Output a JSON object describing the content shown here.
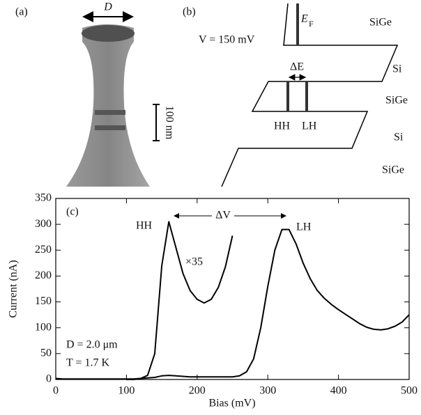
{
  "panel_a": {
    "label": "(a)",
    "width_label": "D",
    "scale_label": "100 nm"
  },
  "panel_b": {
    "label": "(b)",
    "bias": "V = 150 mV",
    "fermi": "E",
    "fermi_sub": "F",
    "layers": [
      "SiGe",
      "Si",
      "SiGe",
      "Si",
      "SiGe"
    ],
    "splitting": "ΔE",
    "hh": "HH",
    "lh": "LH"
  },
  "chart_data": {
    "type": "line",
    "label": "(c)",
    "x_label": "Bias (mV)",
    "y_label": "Current (nA)",
    "x": [
      0,
      10,
      20,
      30,
      40,
      50,
      60,
      70,
      80,
      90,
      100,
      110,
      120,
      130,
      140,
      150,
      160,
      170,
      180,
      190,
      200,
      210,
      220,
      230,
      240,
      250,
      260,
      270,
      280,
      290,
      300,
      310,
      320,
      330,
      340,
      350,
      360,
      370,
      380,
      390,
      400,
      410,
      420,
      430,
      440,
      450,
      460,
      470,
      480,
      490,
      500
    ],
    "series": [
      {
        "color": "#000000",
        "values": [
          2,
          1,
          1,
          1,
          1,
          1,
          1,
          1,
          1,
          1,
          1,
          1,
          2,
          3,
          4,
          7,
          8,
          7,
          6,
          5,
          5,
          5,
          5,
          5,
          5,
          5,
          7,
          15,
          40,
          100,
          180,
          250,
          290,
          290,
          262,
          225,
          195,
          172,
          157,
          145,
          135,
          126,
          117,
          108,
          101,
          97,
          96,
          98,
          103,
          111,
          125
        ]
      },
      {
        "color": "#000000",
        "values": [
          null,
          null,
          null,
          null,
          null,
          null,
          null,
          null,
          null,
          null,
          0,
          0,
          2,
          8,
          50,
          220,
          305,
          255,
          205,
          172,
          155,
          148,
          155,
          178,
          218,
          278,
          null,
          null,
          null,
          null,
          null,
          null,
          null,
          null,
          null,
          null,
          null,
          null,
          null,
          null,
          null,
          null,
          null,
          null,
          null,
          null,
          null,
          null,
          null,
          null,
          null
        ]
      }
    ],
    "annotations": [
      "HH",
      "ΔV",
      "LH",
      "×35",
      "D = 2.0 μm",
      "T = 1.7 K"
    ],
    "xlim": [
      0,
      500
    ],
    "xticks": [
      0,
      100,
      200,
      300,
      400,
      500
    ],
    "ylim": [
      0,
      350
    ],
    "yticks": [
      0,
      50,
      100,
      150,
      200,
      250,
      300,
      350
    ]
  }
}
